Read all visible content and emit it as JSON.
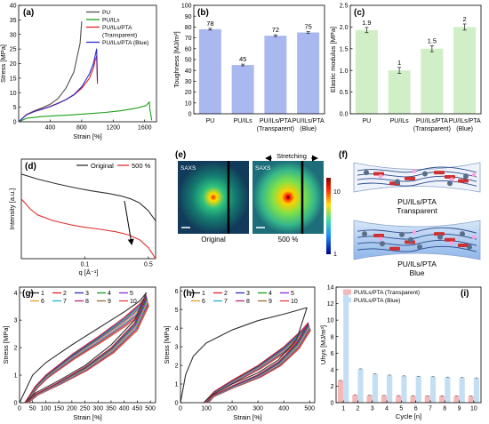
{
  "chart_data": [
    {
      "id": "a",
      "panel_label": "(a)",
      "type": "line",
      "xlabel": "Strain [%]",
      "ylabel": "Stress [MPa]",
      "xlim": [
        0,
        1750
      ],
      "ylim": [
        0,
        40
      ],
      "xticks": [
        400,
        800,
        1200,
        1600
      ],
      "yticks": [
        0,
        5,
        10,
        15,
        20,
        25,
        30,
        35,
        40
      ],
      "legend": [
        "PU",
        "PU/ILs",
        "PU/ILs/PTA",
        "(Transparent)",
        "PU/ILs/PTA (Blue)"
      ],
      "series": [
        {
          "name": "PU",
          "color": "#505050",
          "x": [
            0,
            100,
            200,
            300,
            400,
            500,
            600,
            700,
            780,
            800
          ],
          "y": [
            0,
            2.5,
            3.8,
            4.8,
            6,
            8,
            11.5,
            17,
            27,
            34.5
          ]
        },
        {
          "name": "PU/ILs",
          "color": "#1aa01a",
          "x": [
            0,
            100,
            300,
            500,
            700,
            900,
            1100,
            1300,
            1500,
            1620,
            1660,
            1665,
            1690
          ],
          "y": [
            0,
            1.2,
            1.8,
            2.1,
            2.4,
            2.8,
            3.2,
            3.8,
            4.7,
            5.6,
            6.8,
            4.5,
            0.5
          ]
        },
        {
          "name": "PU/ILs/PTA (Transparent)",
          "color": "#e02020",
          "x": [
            0,
            100,
            200,
            300,
            400,
            500,
            600,
            700,
            800,
            900,
            950,
            970,
            990,
            1000
          ],
          "y": [
            0,
            2.5,
            3.6,
            4.4,
            5.3,
            6.4,
            7.6,
            9.2,
            11.5,
            15,
            18.5,
            21,
            22.5,
            13
          ]
        },
        {
          "name": "PU/ILs/PTA (Blue)",
          "color": "#2a2acc",
          "x": [
            0,
            100,
            200,
            300,
            400,
            500,
            600,
            700,
            800,
            900,
            950,
            990,
            1000
          ],
          "y": [
            0,
            2.4,
            3.5,
            4.3,
            5.2,
            6.3,
            7.6,
            9.3,
            12,
            16.5,
            20,
            25,
            14
          ]
        }
      ]
    },
    {
      "id": "b",
      "panel_label": "(b)",
      "type": "bar",
      "ylabel": "Toughness [MJ/m³]",
      "ylim": [
        0,
        100
      ],
      "yticks": [
        0,
        10,
        20,
        30,
        40,
        50,
        60,
        70,
        80,
        90,
        100
      ],
      "categories": [
        "PU",
        "PU/ILs",
        "PU/ILs/PTA (Transparent)",
        "PU/ILs/PTA (Blue)"
      ],
      "category_lines": [
        [
          "PU"
        ],
        [
          "PU/ILs"
        ],
        [
          "PU/ILs/PTA",
          "(Transparent)"
        ],
        [
          "PU/ILs/PTA",
          "(Blue)"
        ]
      ],
      "values": [
        78,
        45,
        72,
        75
      ],
      "value_labels": [
        "78",
        "45",
        "72",
        "75"
      ],
      "errors": [
        0.8,
        0.8,
        0.8,
        0.8
      ],
      "colors": [
        "#aab8f0",
        "#aab8f0",
        "#aab8f0",
        "#aab8f0"
      ]
    },
    {
      "id": "c",
      "panel_label": "(c)",
      "type": "bar",
      "ylabel": "Elastic modulus [MPa]",
      "ylim": [
        0,
        2.5
      ],
      "yticks": [
        0,
        0.5,
        1.0,
        1.5,
        2.0,
        2.5
      ],
      "ytick_labels": [
        "0.0",
        "0.5",
        "1.0",
        "1.5",
        "2.0",
        "2.5"
      ],
      "categories": [
        "PU",
        "PU/ILs",
        "PU/ILs/PTA (Transparent)",
        "PU/ILs/PTA (Blue)"
      ],
      "category_lines": [
        [
          "PU"
        ],
        [
          "PU/ILs"
        ],
        [
          "PU/ILs/PTA",
          "(Transparent)"
        ],
        [
          "PU/ILs/PTA",
          "(Blue)"
        ]
      ],
      "values": [
        1.93,
        1.0,
        1.5,
        2.0
      ],
      "value_labels": [
        "1.9",
        "1",
        "1.5",
        "2"
      ],
      "errors": [
        0.06,
        0.07,
        0.07,
        0.07
      ],
      "colors": [
        "#d0efc6",
        "#d0efc6",
        "#d0efc6",
        "#d0efc6"
      ]
    },
    {
      "id": "d",
      "panel_label": "(d)",
      "type": "line",
      "xlabel": "q [Å⁻¹]",
      "ylabel": "Intensity [a.u.]",
      "xlog": true,
      "xlim": [
        0.02,
        0.6
      ],
      "xticks": [
        0.1,
        0.5
      ],
      "xtick_labels": [
        "0.1",
        "0.5"
      ],
      "legend": [
        "Original",
        "500 %"
      ],
      "series": [
        {
          "name": "Original",
          "color": "#303030",
          "x": [
            0.02,
            0.03,
            0.05,
            0.08,
            0.12,
            0.18,
            0.25,
            0.32,
            0.4,
            0.5,
            0.6
          ],
          "y": [
            0.85,
            0.8,
            0.75,
            0.71,
            0.68,
            0.655,
            0.63,
            0.6,
            0.56,
            0.48,
            0.38
          ]
        },
        {
          "name": "500 %",
          "color": "#e03030",
          "x": [
            0.02,
            0.025,
            0.03,
            0.045,
            0.07,
            0.1,
            0.15,
            0.22,
            0.3,
            0.4,
            0.5,
            0.6
          ],
          "y": [
            0.6,
            0.5,
            0.44,
            0.38,
            0.34,
            0.315,
            0.295,
            0.27,
            0.24,
            0.19,
            0.11,
            0.0
          ]
        }
      ]
    },
    {
      "id": "g",
      "panel_label": "(g)",
      "type": "line",
      "xlabel": "Strain [%]",
      "ylabel": "Stress [MPa]",
      "xlim": [
        0,
        520
      ],
      "ylim": [
        0,
        4.2
      ],
      "xticks": [
        0,
        50,
        100,
        150,
        200,
        250,
        300,
        350,
        400,
        450,
        500
      ],
      "yticks": [
        0,
        1,
        2,
        3,
        4
      ],
      "legend": [
        "1",
        "2",
        "3",
        "4",
        "5",
        "6",
        "7",
        "8",
        "9",
        "10"
      ],
      "colors": [
        "#303030",
        "#e02020",
        "#2a2acc",
        "#1aa01a",
        "#8a2be2",
        "#e8a020",
        "#20b0d0",
        "#c02080",
        "#9a6a30",
        "#e04040"
      ],
      "cycles": [
        {
          "load": [
            [
              0,
              0
            ],
            [
              50,
              1.0
            ],
            [
              100,
              1.45
            ],
            [
              200,
              2.1
            ],
            [
              300,
              2.7
            ],
            [
              400,
              3.3
            ],
            [
              460,
              3.7
            ],
            [
              485,
              4.0
            ]
          ],
          "unload": [
            [
              485,
              4.0
            ],
            [
              440,
              3.0
            ],
            [
              350,
              2.1
            ],
            [
              250,
              1.35
            ],
            [
              150,
              0.8
            ],
            [
              60,
              0.35
            ],
            [
              20,
              0.0
            ]
          ]
        },
        {
          "load": [
            [
              20,
              0
            ],
            [
              60,
              0.6
            ],
            [
              100,
              1.0
            ],
            [
              200,
              1.75
            ],
            [
              300,
              2.4
            ],
            [
              400,
              3.1
            ],
            [
              460,
              3.6
            ],
            [
              485,
              3.9
            ]
          ],
          "unload": [
            [
              485,
              3.9
            ],
            [
              440,
              2.9
            ],
            [
              350,
              2.0
            ],
            [
              250,
              1.3
            ],
            [
              150,
              0.75
            ],
            [
              60,
              0.3
            ],
            [
              25,
              0.0
            ]
          ]
        }
      ]
    },
    {
      "id": "h",
      "panel_label": "(h)",
      "type": "line",
      "xlabel": "Strain [%]",
      "ylabel": "Stress [MPa]",
      "xlim": [
        0,
        520
      ],
      "ylim": [
        0,
        6.2
      ],
      "xticks": [
        0,
        100,
        200,
        300,
        400,
        500
      ],
      "yticks": [
        0,
        1,
        2,
        3,
        4,
        5,
        6
      ],
      "legend": [
        "1",
        "2",
        "3",
        "4",
        "5",
        "6",
        "7",
        "8",
        "9",
        "10"
      ],
      "colors": [
        "#303030",
        "#e02020",
        "#2a2acc",
        "#1aa01a",
        "#8a2be2",
        "#e8a020",
        "#20b0d0",
        "#c02080",
        "#9a6a30",
        "#e04040"
      ],
      "cycles": [
        {
          "load": [
            [
              0,
              0
            ],
            [
              20,
              1.5
            ],
            [
              50,
              2.5
            ],
            [
              100,
              3.2
            ],
            [
              200,
              3.9
            ],
            [
              300,
              4.4
            ],
            [
              400,
              4.75
            ],
            [
              490,
              5.1
            ]
          ],
          "unload": [
            [
              490,
              5.1
            ],
            [
              450,
              3.4
            ],
            [
              380,
              2.3
            ],
            [
              300,
              1.6
            ],
            [
              200,
              1.0
            ],
            [
              120,
              0.4
            ],
            [
              90,
              0.0
            ]
          ]
        },
        {
          "load": [
            [
              90,
              0
            ],
            [
              130,
              0.6
            ],
            [
              200,
              1.2
            ],
            [
              300,
              2.0
            ],
            [
              400,
              3.0
            ],
            [
              470,
              3.9
            ],
            [
              495,
              4.3
            ]
          ],
          "unload": [
            [
              495,
              4.3
            ],
            [
              450,
              3.2
            ],
            [
              380,
              2.2
            ],
            [
              300,
              1.5
            ],
            [
              200,
              0.9
            ],
            [
              120,
              0.35
            ],
            [
              100,
              0.0
            ]
          ]
        }
      ]
    },
    {
      "id": "i",
      "panel_label": "(i)",
      "type": "bar",
      "xlabel": "Cycle [n]",
      "ylabel": "Uhys [MJ/m³]",
      "ylim": [
        0,
        14
      ],
      "yticks": [
        0,
        2,
        4,
        6,
        8,
        10,
        12,
        14
      ],
      "categories": [
        "1",
        "2",
        "3",
        "4",
        "5",
        "6",
        "7",
        "8",
        "9",
        "10"
      ],
      "series": [
        {
          "name": "PU/ILs/PTA (Transparent)",
          "color": "#f4b8b8",
          "values": [
            2.7,
            0.95,
            0.9,
            0.88,
            0.86,
            0.85,
            0.84,
            0.83,
            0.82,
            0.8
          ]
        },
        {
          "name": "PU/ILs/PTA (Blue)",
          "color": "#c4dff3",
          "values": [
            13.4,
            4.1,
            3.5,
            3.35,
            3.25,
            3.2,
            3.15,
            3.1,
            3.05,
            3.0
          ]
        }
      ]
    }
  ],
  "saxs": {
    "panel_label": "(e)",
    "tag_left": "SAXS",
    "tag_right": "SAXS",
    "stretch_label": "Stretching",
    "caption_left": "Original",
    "caption_right": "500 %",
    "colorbar_top": "10",
    "colorbar_bottom": "1"
  },
  "schematic": {
    "panel_label": "(f)",
    "top_caption": [
      "PU/ILs/PTA",
      "Transparent"
    ],
    "bottom_caption": [
      "PU/ILs/PTA",
      "Blue"
    ],
    "colors": {
      "chain": "#2a4a8a",
      "block": "#d03030",
      "cluster": "#5a6e8a",
      "dot": "#ff9ee0",
      "tint": "#a9c8ee"
    }
  }
}
